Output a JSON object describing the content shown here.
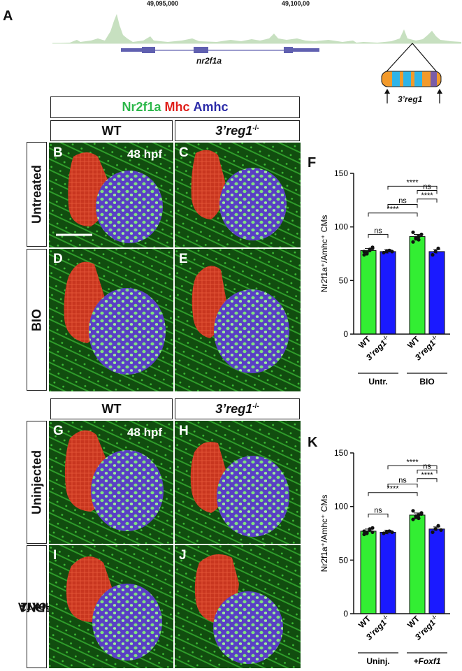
{
  "panelA": {
    "letter": "A",
    "coord_left": "49,095,000",
    "coord_right": "49,100,00",
    "gene": "nr2f1a",
    "element": "3’reg1"
  },
  "stain_header": {
    "nr2f1a": "Nr2f1a",
    "mhc": "Mhc",
    "amhc": "Amhc",
    "colors": {
      "nr2f1a": "#2db84b",
      "mhc": "#e0201b",
      "amhc": "#2b2ba8"
    }
  },
  "column_headers": {
    "wt": "WT",
    "mut_main": "3’reg1",
    "mut_sup": "-/-"
  },
  "row_labels": {
    "untreated": "Untreated",
    "bio": "BIO",
    "uninjected": "Uninjected",
    "foxf1_prefix": "+",
    "foxf1_gene": "Foxf1",
    "foxf1_suffix": " mRNA"
  },
  "tiles": {
    "B": "B",
    "C": "C",
    "D": "D",
    "E": "E",
    "G": "G",
    "H": "H",
    "I": "I",
    "J": "J",
    "stage": "48 hpf"
  },
  "charts": {
    "F": {
      "letter": "F"
    },
    "K": {
      "letter": "K"
    }
  },
  "chart_data": [
    {
      "type": "bar",
      "panel": "F",
      "ylabel": "Nr2f1a⁺/Amhc⁺ CMs",
      "ylim": [
        0,
        150
      ],
      "yticks": [
        "0",
        "50",
        "100",
        "150"
      ],
      "categories": [
        "WT",
        "3’reg1-/-",
        "WT",
        "3’reg1-/-"
      ],
      "groups": [
        "Untr.",
        "BIO"
      ],
      "values": [
        78,
        77,
        91,
        77
      ],
      "colors": [
        "#33ee33",
        "#1a1aff",
        "#33ee33",
        "#1a1aff"
      ],
      "points": [
        [
          74,
          76,
          78,
          80,
          77,
          75,
          79,
          81
        ],
        [
          76,
          77,
          78,
          77
        ],
        [
          86,
          89,
          91,
          93,
          95,
          90,
          88
        ],
        [
          74,
          77,
          80
        ]
      ],
      "comparisons": [
        {
          "from": 0,
          "to": 1,
          "label": "ns"
        },
        {
          "from": 0,
          "to": 2,
          "label": "****"
        },
        {
          "from": 1,
          "to": 2,
          "label": "ns"
        },
        {
          "from": 1,
          "to": 3,
          "label": "****"
        },
        {
          "from": 2,
          "to": 3,
          "label": "****"
        },
        {
          "from": 3,
          "to": 3,
          "label": "ns"
        }
      ]
    },
    {
      "type": "bar",
      "panel": "K",
      "ylabel": "Nr2f1a⁺/Amhc⁺ CMs",
      "ylim": [
        0,
        150
      ],
      "yticks": [
        "0",
        "50",
        "100",
        "150"
      ],
      "categories": [
        "WT",
        "3’reg1-/-",
        "WT",
        "3’reg1-/-"
      ],
      "groups": [
        "Uninj.",
        "+Foxf1"
      ],
      "values": [
        77,
        76,
        92,
        79
      ],
      "colors": [
        "#33ee33",
        "#1a1aff",
        "#33ee33",
        "#1a1aff"
      ],
      "points": [
        [
          74,
          76,
          78,
          80,
          77,
          75,
          79,
          76
        ],
        [
          75,
          76,
          77,
          76
        ],
        [
          88,
          90,
          92,
          94,
          96,
          91,
          89,
          93
        ],
        [
          76,
          79,
          82,
          78
        ]
      ],
      "comparisons": [
        {
          "from": 0,
          "to": 1,
          "label": "ns"
        },
        {
          "from": 0,
          "to": 2,
          "label": "****"
        },
        {
          "from": 1,
          "to": 2,
          "label": "ns"
        },
        {
          "from": 1,
          "to": 3,
          "label": "****"
        },
        {
          "from": 2,
          "to": 3,
          "label": "****"
        },
        {
          "from": 3,
          "to": 3,
          "label": "ns"
        }
      ]
    }
  ]
}
